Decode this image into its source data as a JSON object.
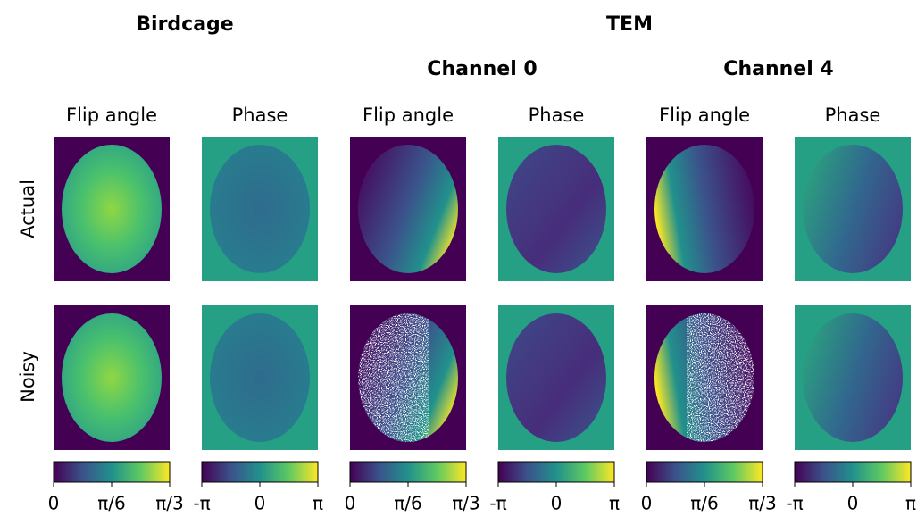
{
  "header": {
    "groups": [
      "Birdcage",
      "TEM"
    ],
    "channels": [
      "Channel 0",
      "Channel 4"
    ]
  },
  "columns": [
    "Flip angle",
    "Phase",
    "Flip angle",
    "Phase",
    "Flip angle",
    "Phase"
  ],
  "rows": [
    "Actual",
    "Noisy"
  ],
  "colorbars": [
    [
      "0",
      "π/6",
      "π/3"
    ],
    [
      "-π",
      "0",
      "π"
    ],
    [
      "0",
      "π/6",
      "π/3"
    ],
    [
      "-π",
      "0",
      "π"
    ],
    [
      "0",
      "π/6",
      "π/3"
    ],
    [
      "-π",
      "0",
      "π"
    ]
  ]
}
